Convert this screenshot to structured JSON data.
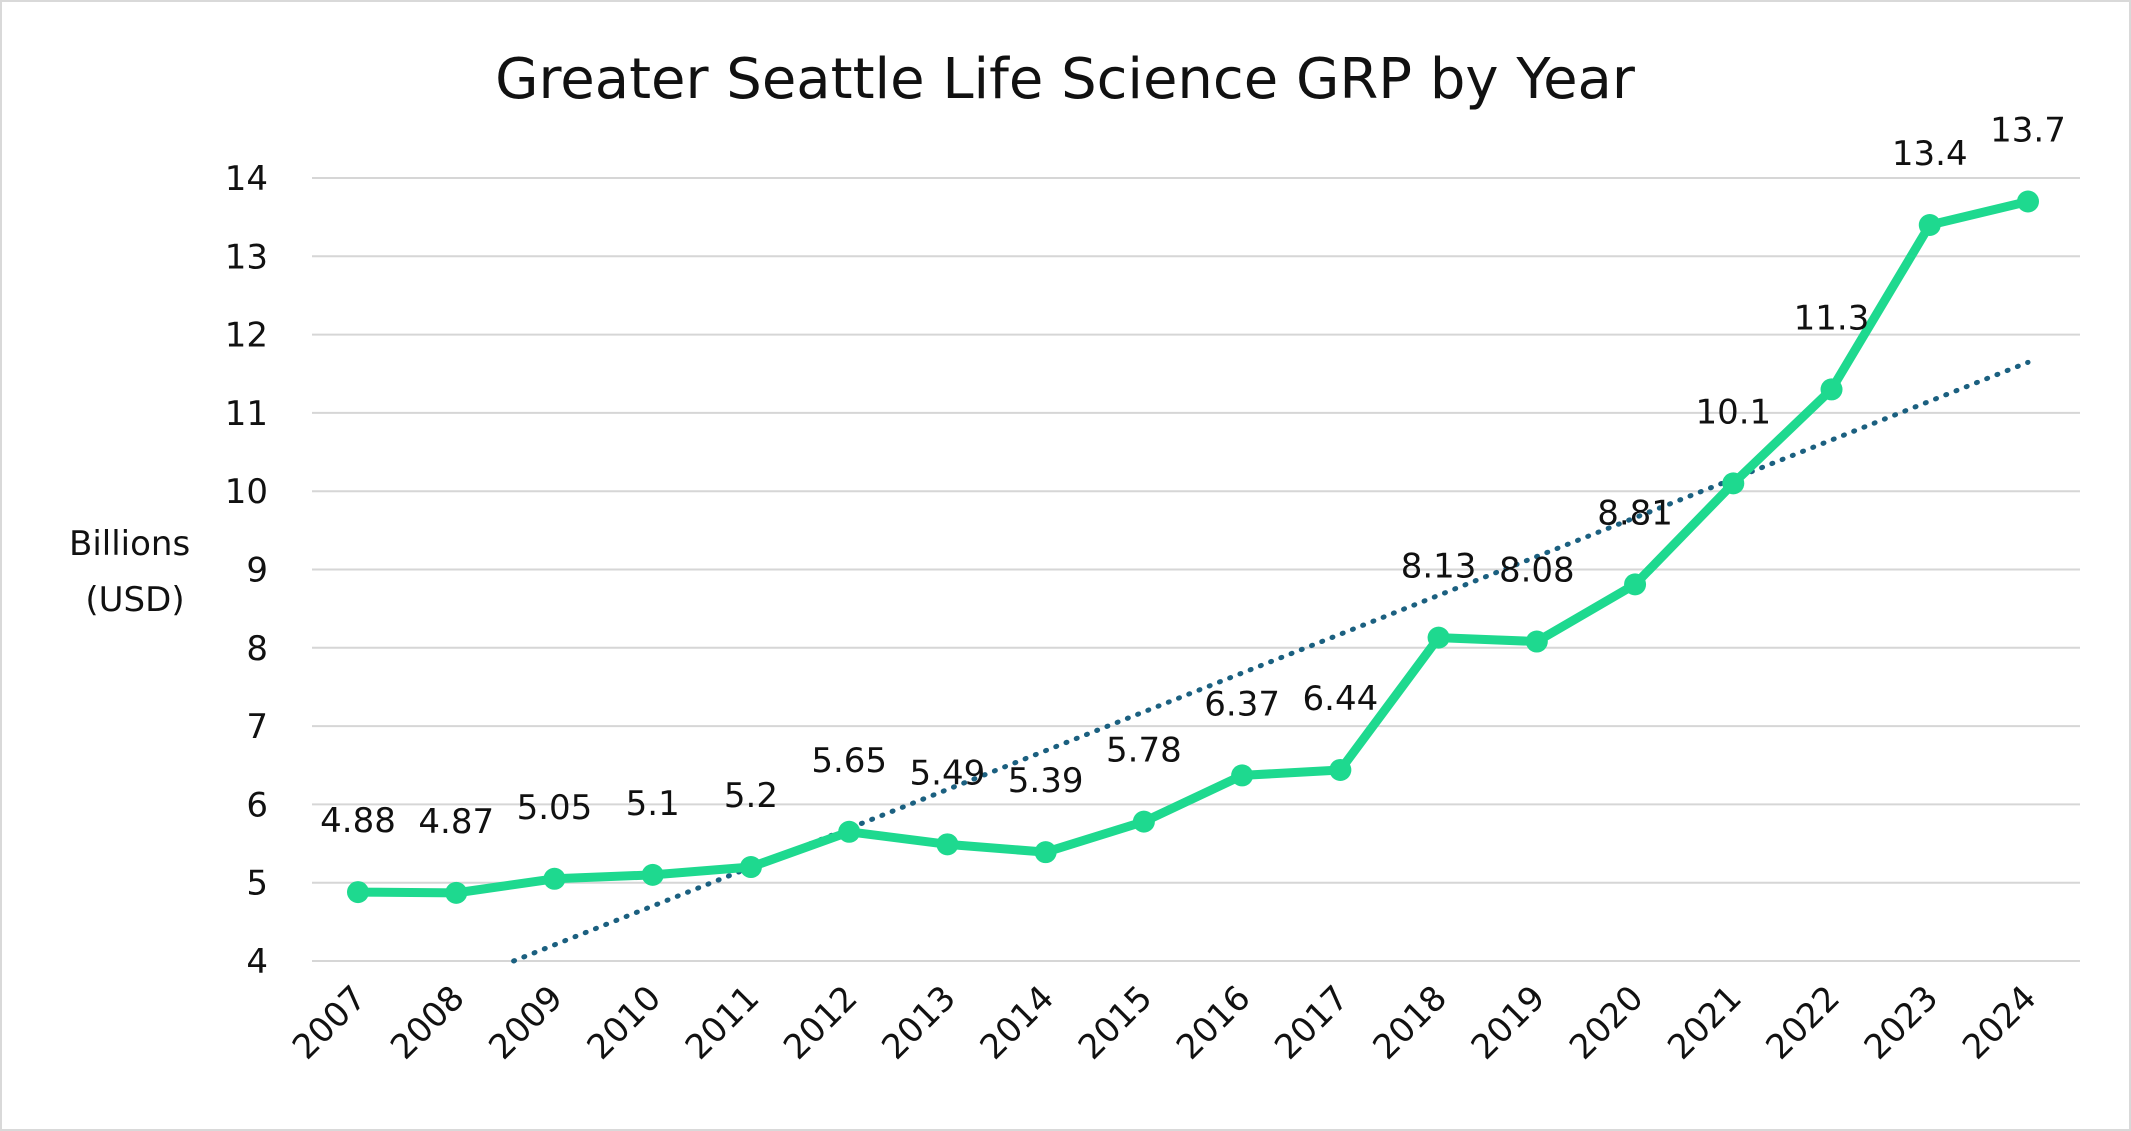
{
  "chart_data": {
    "type": "line",
    "title": "Greater Seattle Life Science GRP by Year",
    "xlabel": "",
    "ylabel": [
      "Billions",
      "(USD)"
    ],
    "categories": [
      "2007",
      "2008",
      "2009",
      "2010",
      "2011",
      "2012",
      "2013",
      "2014",
      "2015",
      "2016",
      "2017",
      "2018",
      "2019",
      "2020",
      "2021",
      "2022",
      "2023",
      "2024"
    ],
    "series": [
      {
        "values": [
          4.88,
          4.87,
          5.05,
          5.1,
          5.2,
          5.65,
          5.49,
          5.39,
          5.78,
          6.37,
          6.44,
          8.13,
          8.08,
          8.81,
          10.1,
          11.3,
          13.4,
          13.7
        ],
        "labels": [
          "4.88",
          "4.87",
          "5.05",
          "5.1",
          "5.2",
          "5.65",
          "5.49",
          "5.39",
          "5.78",
          "6.37",
          "6.44",
          "8.13",
          "8.08",
          "8.81",
          "10.1",
          "11.3",
          "13.4",
          "13.7"
        ],
        "color": "#1ed98f",
        "trendline": {
          "type": "linear",
          "style": "dotted",
          "color": "#1b6080"
        }
      }
    ],
    "yticks": [
      "4",
      "5",
      "6",
      "7",
      "8",
      "9",
      "10",
      "11",
      "12",
      "13",
      "14"
    ],
    "ylim": [
      4,
      14
    ],
    "grid": true,
    "legend": "none"
  }
}
